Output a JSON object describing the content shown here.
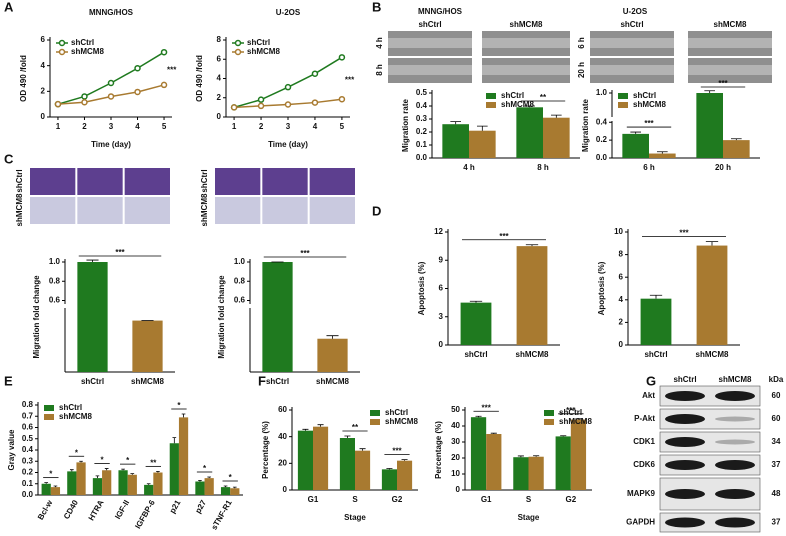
{
  "panels": [
    "A",
    "B",
    "C",
    "D",
    "E",
    "F",
    "G"
  ],
  "wound_healing": {
    "titles": [
      "MNNG/HOS",
      "U-2OS"
    ],
    "columns": [
      "shCtrl",
      "shMCM8",
      "shCtrl",
      "shMCM8"
    ],
    "rows": [
      "4 h",
      "8 h",
      "6 h",
      "20 h"
    ]
  },
  "transwell": [
    {
      "rows": [
        "shCtrl",
        "shMCM8"
      ]
    },
    {
      "rows": [
        "shCtrl",
        "shMCM8"
      ]
    }
  ],
  "western_blot": {
    "columns": [
      "shCtrl",
      "shMCM8"
    ],
    "unit": "kDa",
    "rows": [
      {
        "label": "Akt",
        "kda": 60
      },
      {
        "label": "P-Akt",
        "kda": 60
      },
      {
        "label": "CDK1",
        "kda": 34
      },
      {
        "label": "CDK6",
        "kda": 37
      },
      {
        "label": "MAPK9",
        "kda": 48
      },
      {
        "label": "GAPDH",
        "kda": 37
      }
    ]
  },
  "chart_data": [
    {
      "type": "line",
      "title": "MNNG/HOS",
      "x": [
        1,
        2,
        3,
        4,
        5
      ],
      "xlim": [
        0.7,
        5.3
      ],
      "xticks": [
        1,
        2,
        3,
        4,
        5
      ],
      "ylim": [
        0,
        6
      ],
      "yticks": [
        0,
        2,
        4,
        6
      ],
      "x_label": "Time (day)",
      "y_label": "OD 490 /fold",
      "legend": "upper left",
      "series": [
        {
          "name": "shCtrl",
          "color": "#1f7a1f",
          "values": [
            1,
            1.6,
            2.65,
            3.8,
            5.05
          ]
        },
        {
          "name": "shMCM8",
          "color": "#a87a30",
          "values": [
            1,
            1.15,
            1.6,
            1.95,
            2.5
          ]
        }
      ],
      "annotations": [
        {
          "index": 4,
          "text": "***"
        }
      ]
    },
    {
      "type": "line",
      "title": "U-2OS",
      "x": [
        1,
        2,
        3,
        4,
        5
      ],
      "xlim": [
        0.7,
        5.3
      ],
      "xticks": [
        1,
        2,
        3,
        4,
        5
      ],
      "ylim": [
        0,
        8
      ],
      "yticks": [
        0,
        2,
        4,
        6,
        8
      ],
      "x_label": "Time (day)",
      "y_label": "OD 490 /fold",
      "legend": "upper left",
      "series": [
        {
          "name": "shCtrl",
          "color": "#1f7a1f",
          "values": [
            1,
            1.8,
            3.1,
            4.5,
            6.2
          ]
        },
        {
          "name": "shMCM8",
          "color": "#a87a30",
          "values": [
            1,
            1.15,
            1.3,
            1.5,
            1.85
          ]
        }
      ],
      "annotations": [
        {
          "index": 4,
          "text": "***"
        }
      ]
    },
    {
      "type": "bar",
      "categories": [
        "4 h",
        "8 h"
      ],
      "ylim": [
        0,
        0.5
      ],
      "yticks": [
        {
          "value": 0,
          "label": "0.0"
        },
        0.1,
        0.2,
        0.3,
        0.4,
        0.5
      ],
      "y_label": "Migration rate",
      "legend": "upper center",
      "series": [
        {
          "name": "shCtrl",
          "color": "#1f7a1f",
          "values": [
            0.26,
            0.39
          ],
          "errors": [
            0.02,
            0.01
          ]
        },
        {
          "name": "shMCM8",
          "color": "#a87a30",
          "values": [
            0.21,
            0.31
          ],
          "errors": [
            0.035,
            0.02
          ]
        }
      ],
      "annotations": [
        {
          "index": 1,
          "text": "**"
        }
      ]
    },
    {
      "type": "bar",
      "categories": [
        "6 h",
        "20 h"
      ],
      "ylim": [
        0,
        1.0
      ],
      "ybreak": [
        0.4,
        0.9
      ],
      "yticks": [
        {
          "value": 0,
          "label": "0.0"
        },
        0.2,
        0.4,
        {
          "value": 1,
          "label": "1.0"
        }
      ],
      "y_label": "Migration rate",
      "legend": "upper left",
      "series": [
        {
          "name": "shCtrl",
          "color": "#1f7a1f",
          "values": [
            0.27,
            1.0
          ],
          "errors": [
            0.02,
            0.01
          ]
        },
        {
          "name": "shMCM8",
          "color": "#a87a30",
          "values": [
            0.05,
            0.2
          ],
          "errors": [
            0.02,
            0.015
          ]
        }
      ],
      "annotations": [
        {
          "index": 0,
          "text": "***"
        },
        {
          "index": 1,
          "text": "***"
        }
      ]
    },
    {
      "type": "bar",
      "categories": [
        "shCtrl",
        "shMCM8"
      ],
      "ylim": [
        0,
        1.0
      ],
      "ybreak": [
        0.2,
        0.6
      ],
      "yticks": [
        0.6,
        0.8,
        {
          "value": 1,
          "label": "1.0"
        }
      ],
      "y_label": "Migration fold change",
      "colors": [
        "#1f7a1f",
        "#a87a30"
      ],
      "values": [
        1.0,
        0.17
      ],
      "errors": [
        0.02,
        0.0
      ],
      "annotations": [
        {
          "text": "***"
        }
      ]
    },
    {
      "type": "bar",
      "categories": [
        "shCtrl",
        "shMCM8"
      ],
      "ylim": [
        0,
        1.0
      ],
      "ybreak": [
        0.2,
        0.6
      ],
      "yticks": [
        0.6,
        0.8,
        {
          "value": 1,
          "label": "1.0"
        }
      ],
      "y_label": "Migration fold change",
      "colors": [
        "#1f7a1f",
        "#a87a30"
      ],
      "values": [
        1.0,
        0.11
      ],
      "errors": [
        0.0,
        0.01
      ],
      "annotations": [
        {
          "text": "***"
        }
      ]
    },
    {
      "type": "bar",
      "categories": [
        "shCtrl",
        "shMCM8"
      ],
      "ylim": [
        0,
        12
      ],
      "yticks": [
        0,
        3,
        6,
        9,
        12
      ],
      "y_label": "Apoptosis (%)",
      "colors": [
        "#1f7a1f",
        "#a87a30"
      ],
      "values": [
        4.5,
        10.5
      ],
      "errors": [
        0.15,
        0.15
      ],
      "annotations": [
        {
          "text": "***"
        }
      ]
    },
    {
      "type": "bar",
      "categories": [
        "shCtrl",
        "shMCM8"
      ],
      "ylim": [
        0,
        10
      ],
      "yticks": [
        0,
        2,
        4,
        6,
        8,
        10
      ],
      "y_label": "Apoptosis (%)",
      "colors": [
        "#1f7a1f",
        "#a87a30"
      ],
      "values": [
        4.1,
        8.8
      ],
      "errors": [
        0.3,
        0.35
      ],
      "annotations": [
        {
          "text": "***"
        }
      ]
    },
    {
      "type": "bar",
      "categories": [
        "Bcl-w",
        "CD40",
        "HTRA",
        "IGF-II",
        "IGFBP-6",
        "p21",
        "p27",
        "sTNF-R1"
      ],
      "ylim": [
        0,
        0.8
      ],
      "yticks": [
        {
          "value": 0,
          "label": "0.0"
        },
        0.1,
        0.2,
        0.3,
        0.4,
        0.5,
        0.6,
        0.7,
        0.8
      ],
      "y_label": "Gray value",
      "legend": "upper left",
      "series": [
        {
          "name": "shCtrl",
          "color": "#1f7a1f",
          "values": [
            0.1,
            0.21,
            0.15,
            0.22,
            0.09,
            0.46,
            0.12,
            0.07
          ],
          "errors": [
            0.01,
            0.015,
            0.02,
            0.01,
            0.01,
            0.05,
            0.01,
            0.01
          ]
        },
        {
          "name": "shMCM8",
          "color": "#a87a30",
          "values": [
            0.07,
            0.29,
            0.22,
            0.18,
            0.2,
            0.69,
            0.15,
            0.06
          ],
          "errors": [
            0.01,
            0.01,
            0.015,
            0.01,
            0.01,
            0.03,
            0.01,
            0.01
          ]
        }
      ],
      "annotations": [
        {
          "index": 0,
          "text": "*"
        },
        {
          "index": 1,
          "text": "*"
        },
        {
          "index": 2,
          "text": "*"
        },
        {
          "index": 3,
          "text": "*"
        },
        {
          "index": 4,
          "text": "**"
        },
        {
          "index": 5,
          "text": "*"
        },
        {
          "index": 6,
          "text": "*"
        },
        {
          "index": 7,
          "text": "*"
        }
      ]
    },
    {
      "type": "bar",
      "categories": [
        "G1",
        "S",
        "G2"
      ],
      "ylim": [
        0,
        60
      ],
      "yticks": [
        0,
        20,
        40,
        60
      ],
      "x_label": "Stage",
      "y_label": "Percentage (%)",
      "legend": "upper right",
      "series": [
        {
          "name": "shCtrl",
          "color": "#1f7a1f",
          "values": [
            44.5,
            39,
            15.5
          ],
          "errors": [
            1,
            1.5,
            0.6
          ]
        },
        {
          "name": "shMCM8",
          "color": "#a87a30",
          "values": [
            47.5,
            29.5,
            22
          ],
          "errors": [
            1.5,
            1.5,
            0.8
          ]
        }
      ],
      "annotations": [
        {
          "index": 1,
          "text": "**"
        },
        {
          "index": 2,
          "text": "***"
        }
      ]
    },
    {
      "type": "bar",
      "categories": [
        "G1",
        "S",
        "G2"
      ],
      "ylim": [
        0,
        50
      ],
      "yticks": [
        0,
        10,
        20,
        30,
        40,
        50
      ],
      "x_label": "Stage",
      "y_label": "Percentage (%)",
      "legend": "upper right",
      "series": [
        {
          "name": "shCtrl",
          "color": "#1f7a1f",
          "values": [
            45.5,
            20.5,
            33.5
          ],
          "errors": [
            0.6,
            0.8,
            0.4
          ]
        },
        {
          "name": "shMCM8",
          "color": "#a87a30",
          "values": [
            35,
            20.8,
            44
          ],
          "errors": [
            0.5,
            0.6,
            0.5
          ]
        }
      ],
      "annotations": [
        {
          "index": 0,
          "text": "***"
        },
        {
          "index": 2,
          "text": "***"
        }
      ]
    }
  ]
}
